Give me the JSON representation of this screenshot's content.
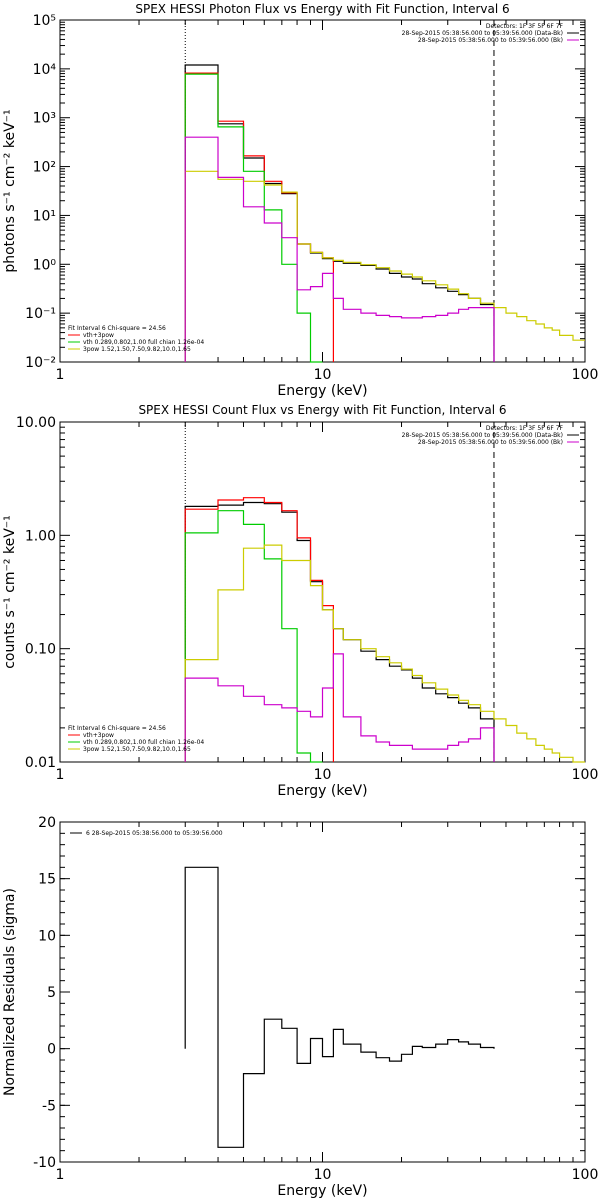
{
  "chart_data": [
    {
      "type": "line",
      "title": "SPEX HESSI Photon Flux vs Energy with Fit Function, Interval 6",
      "xlabel": "Energy (keV)",
      "ylabel": "photons s⁻¹ cm⁻² keV⁻¹",
      "xscale": "log",
      "yscale": "log",
      "xlim": [
        1,
        100
      ],
      "ylim": [
        0.01,
        100000
      ],
      "x_tick_labels": [
        "1",
        "10",
        "100"
      ],
      "y_tick_labels": [
        "10⁻²",
        "10⁻¹",
        "10⁰",
        "10¹",
        "10²",
        "10³",
        "10⁴",
        "10⁵"
      ],
      "vlines": [
        {
          "x": 3.0,
          "style": "dotted"
        },
        {
          "x": 45.0,
          "style": "dashed"
        }
      ],
      "legend_top": [
        "Detectors: 1F 3F 5F 6F 7F",
        "28-Sep-2015 05:38:56.000 to 05:39:56.000 (Data-Bk)",
        "28-Sep-2015 05:38:56.000 to 05:39:56.000 (Bk)"
      ],
      "legend_bottom": [
        "Fit Interval 6   Chi-square = 24.56",
        "vth+3pow",
        "vth 0.289,0.802,1.00  full chian 1.26e-04",
        "3pow 1.52,1.50,7.50,9.82,10.0,1.65"
      ],
      "edges": [
        3.0,
        4.0,
        5.0,
        6.0,
        7.0,
        8.0,
        9.0,
        10.0,
        11.0,
        12.0,
        14.0,
        16.0,
        18.0,
        20.0,
        22.0,
        24.0,
        27.0,
        30.0,
        33.0,
        36.0,
        40.0,
        45.0,
        50.0,
        55.0,
        60.0,
        65.0,
        70.0,
        75.0,
        80.0,
        90.0,
        100.0
      ],
      "series": [
        {
          "name": "Data-Bk",
          "color": "#000000",
          "values": [
            12000,
            750,
            150,
            45,
            28,
            2.6,
            1.7,
            1.3,
            1.15,
            1.05,
            0.95,
            0.8,
            0.65,
            0.55,
            0.5,
            0.4,
            0.33,
            0.28,
            0.24,
            0.2,
            0.15
          ]
        },
        {
          "name": "vth+3pow",
          "color": "#ff0000",
          "values": [
            8200,
            850,
            165,
            50,
            29,
            2.6,
            1.75,
            1.35
          ]
        },
        {
          "name": "vth",
          "color": "#00cc00",
          "values": [
            7800,
            650,
            80,
            13,
            1.0,
            0.1,
            0.01
          ]
        },
        {
          "name": "3pow",
          "color": "#cccc00",
          "values": [
            80,
            55,
            50,
            42,
            30,
            2.6,
            1.75,
            1.35,
            1.2,
            1.1,
            0.98,
            0.85,
            0.73,
            0.63,
            0.55,
            0.46,
            0.38,
            0.31,
            0.25,
            0.2,
            0.16,
            0.13,
            0.1,
            0.085,
            0.07,
            0.06,
            0.05,
            0.045,
            0.035,
            0.028
          ]
        },
        {
          "name": "Bk",
          "color": "#cc00cc",
          "values": [
            400,
            60,
            15,
            7,
            3.5,
            0.3,
            0.35,
            0.65,
            0.2,
            0.12,
            0.1,
            0.09,
            0.085,
            0.08,
            0.08,
            0.085,
            0.09,
            0.1,
            0.12,
            0.13,
            0.13
          ]
        }
      ]
    },
    {
      "type": "line",
      "title": "SPEX HESSI Count Flux vs Energy with Fit Function, Interval 6",
      "xlabel": "Energy (keV)",
      "ylabel": "counts s⁻¹ cm⁻² keV⁻¹",
      "xscale": "log",
      "yscale": "log",
      "xlim": [
        1,
        100
      ],
      "ylim": [
        0.01,
        10
      ],
      "x_tick_labels": [
        "1",
        "10",
        "100"
      ],
      "y_tick_labels": [
        "0.01",
        "0.10",
        "1.00",
        "10.00"
      ],
      "vlines": [
        {
          "x": 3.0,
          "style": "dotted"
        },
        {
          "x": 45.0,
          "style": "dashed"
        }
      ],
      "legend_top": [
        "Detectors: 1F 3F 5F 6F 7F",
        "28-Sep-2015 05:38:56.000 to 05:39:56.000 (Data-Bk)",
        "28-Sep-2015 05:38:56.000 to 05:39:56.000 (Bk)"
      ],
      "legend_bottom": [
        "Fit Interval 6   Chi-square = 24.56",
        "vth+3pow",
        "vth 0.289,0.802,1.00  full chian 1.26e-04",
        "3pow 1.52,1.50,7.50,9.82,10.0,1.65"
      ],
      "edges": [
        3.0,
        4.0,
        5.0,
        6.0,
        7.0,
        8.0,
        9.0,
        10.0,
        11.0,
        12.0,
        14.0,
        16.0,
        18.0,
        20.0,
        22.0,
        24.0,
        27.0,
        30.0,
        33.0,
        36.0,
        40.0,
        45.0,
        50.0,
        55.0,
        60.0,
        65.0,
        70.0,
        75.0,
        80.0,
        90.0,
        100.0
      ],
      "series": [
        {
          "name": "Data-Bk",
          "color": "#000000",
          "values": [
            1.8,
            1.85,
            1.95,
            1.9,
            1.6,
            0.9,
            0.39,
            0.22,
            0.15,
            0.12,
            0.095,
            0.08,
            0.07,
            0.065,
            0.055,
            0.045,
            0.04,
            0.037,
            0.033,
            0.03,
            0.024
          ]
        },
        {
          "name": "vth+3pow",
          "color": "#ff0000",
          "values": [
            1.7,
            2.05,
            2.15,
            1.95,
            1.65,
            0.95,
            0.4,
            0.24
          ]
        },
        {
          "name": "vth",
          "color": "#00cc00",
          "values": [
            1.05,
            1.65,
            1.25,
            0.62,
            0.15,
            0.012,
            0.009
          ]
        },
        {
          "name": "3pow",
          "color": "#cccc00",
          "values": [
            0.08,
            0.33,
            0.77,
            0.82,
            0.6,
            0.6,
            0.36,
            0.22,
            0.15,
            0.12,
            0.1,
            0.085,
            0.075,
            0.066,
            0.058,
            0.05,
            0.044,
            0.039,
            0.035,
            0.032,
            0.028,
            0.024,
            0.021,
            0.018,
            0.016,
            0.014,
            0.013,
            0.012,
            0.011,
            0.01
          ]
        },
        {
          "name": "Bk",
          "color": "#cc00cc",
          "values": [
            0.055,
            0.047,
            0.038,
            0.032,
            0.03,
            0.028,
            0.025,
            0.045,
            0.09,
            0.025,
            0.017,
            0.015,
            0.014,
            0.014,
            0.013,
            0.013,
            0.013,
            0.014,
            0.015,
            0.016,
            0.02
          ]
        }
      ]
    },
    {
      "type": "line",
      "title": "",
      "xlabel": "Energy (keV)",
      "ylabel": "Normalized Residuals (sigma)",
      "xscale": "log",
      "yscale": "linear",
      "xlim": [
        1,
        100
      ],
      "ylim": [
        -10,
        20
      ],
      "x_tick_labels": [
        "1",
        "10",
        "100"
      ],
      "y_tick_labels": [
        "-10",
        "-5",
        "0",
        "5",
        "10",
        "15",
        "20"
      ],
      "legend_top": [
        "6  28-Sep-2015 05:38:56.000 to 05:39:56.000"
      ],
      "edges": [
        3.0,
        4.0,
        5.0,
        6.0,
        7.0,
        8.0,
        9.0,
        10.0,
        11.0,
        12.0,
        14.0,
        16.0,
        18.0,
        20.0,
        22.0,
        24.0,
        27.0,
        30.0,
        33.0,
        36.0,
        40.0,
        45.0
      ],
      "series": [
        {
          "name": "6  28-Sep-2015 05:38:56.000 to 05:39:56.000",
          "color": "#000000",
          "values": [
            16,
            -8.7,
            -2.2,
            2.6,
            1.8,
            -1.3,
            0.9,
            -0.7,
            1.7,
            0.4,
            -0.3,
            -0.8,
            -1.1,
            -0.5,
            0.2,
            0.1,
            0.4,
            0.8,
            0.6,
            0.4,
            0.1
          ]
        }
      ]
    }
  ]
}
